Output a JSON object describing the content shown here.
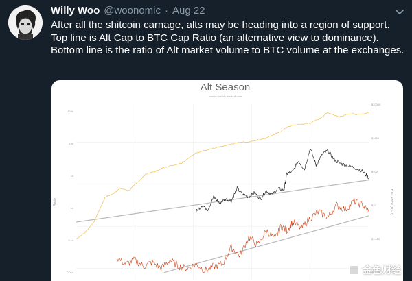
{
  "tweet": {
    "author_name": "Willy Woo",
    "author_handle": "@woonomic",
    "separator": "·",
    "date": "Aug 22",
    "text": "After all the shitcoin carnage, alts may be heading into a region of support. Top line is Alt Cap to BTC Cap Ratio (an alternative view to dominance). Bottom line is the ratio of Alt market volume to BTC volume at the exchanges."
  },
  "icons": {
    "avatar": "avatar-portrait",
    "menu": "chevron-down-icon",
    "watermark": "watermark-logo-icon"
  },
  "watermark": {
    "text": "金色财经"
  },
  "chart_data": {
    "type": "line",
    "title": "Alt Season",
    "subtitle": "source: charts.woobull.com",
    "ylabel_left": "Ratio",
    "ylabel_right": "BTC Price (USD)",
    "y_left_ticks": [
      "100x",
      "10x",
      "1x",
      "1x",
      "0.1x",
      "0.01x"
    ],
    "y_right_ticks": [
      "$10000",
      "$1000",
      "$100",
      "$10",
      "$1.000",
      "$0.100"
    ],
    "grid": true,
    "log_scale": true,
    "colors": {
      "btc_price": "#f0c050",
      "alt_cap_ratio": "#2a2a2a",
      "alt_volume_ratio": "#d04010",
      "support": "#b8b8b8"
    },
    "series": [
      {
        "key": "btc_price",
        "x": [
          0,
          0.03,
          0.06,
          0.08,
          0.1,
          0.12,
          0.15,
          0.18,
          0.21,
          0.24,
          0.27,
          0.3,
          0.33,
          0.36,
          0.38,
          0.41,
          0.44,
          0.47,
          0.5,
          0.53,
          0.56,
          0.59,
          0.62,
          0.65,
          0.68,
          0.7,
          0.72,
          0.74,
          0.77,
          0.8,
          0.83,
          0.86,
          0.9,
          0.93,
          0.97,
          1.0
        ],
        "y": [
          -2.6,
          -2.3,
          -1.8,
          -1.2,
          -0.6,
          -0.5,
          -0.2,
          -0.3,
          0.1,
          0.5,
          0.6,
          0.8,
          0.9,
          1.0,
          1.2,
          1.5,
          1.6,
          1.7,
          1.8,
          1.9,
          2.0,
          2.0,
          2.1,
          2.2,
          2.4,
          2.5,
          2.7,
          2.8,
          2.85,
          2.9,
          3.1,
          3.4,
          3.2,
          3.35,
          3.3,
          3.4
        ]
      },
      {
        "key": "alt_cap_ratio",
        "x": [
          0.41,
          0.43,
          0.45,
          0.47,
          0.49,
          0.51,
          0.53,
          0.55,
          0.57,
          0.59,
          0.61,
          0.63,
          0.65,
          0.67,
          0.69,
          0.71,
          0.72,
          0.74,
          0.76,
          0.78,
          0.8,
          0.82,
          0.84,
          0.86,
          0.88,
          0.9,
          0.92,
          0.95,
          0.98,
          1.0
        ],
        "y": [
          -1.3,
          -1.0,
          -1.2,
          -0.6,
          -0.9,
          -0.7,
          -0.8,
          -0.2,
          -0.5,
          -0.6,
          -0.4,
          -0.7,
          -0.3,
          -0.5,
          -0.2,
          -0.3,
          0.5,
          0.6,
          1.1,
          0.7,
          1.7,
          0.9,
          1.4,
          1.6,
          1.2,
          1.0,
          0.9,
          0.8,
          0.6,
          0.3
        ]
      },
      {
        "key": "alt_volume_ratio",
        "x": [
          0.14,
          0.17,
          0.2,
          0.23,
          0.26,
          0.29,
          0.32,
          0.35,
          0.38,
          0.41,
          0.44,
          0.47,
          0.5,
          0.53,
          0.56,
          0.59,
          0.62,
          0.65,
          0.68,
          0.7,
          0.72,
          0.74,
          0.77,
          0.8,
          0.83,
          0.86,
          0.89,
          0.92,
          0.95,
          0.98,
          1.0
        ],
        "y": [
          -3.5,
          -3.8,
          -3.6,
          -3.9,
          -3.7,
          -4.0,
          -3.6,
          -3.9,
          -4.0,
          -3.8,
          -4.1,
          -3.9,
          -3.8,
          -3.0,
          -3.4,
          -2.5,
          -2.9,
          -2.2,
          -2.6,
          -2.0,
          -2.2,
          -1.8,
          -2.1,
          -1.6,
          -1.3,
          -1.6,
          -1.0,
          -1.2,
          -0.8,
          -1.0,
          -1.3
        ]
      }
    ],
    "support_lines": [
      {
        "x": [
          0.0,
          1.0
        ],
        "y": [
          -1.8,
          0.2
        ]
      },
      {
        "x": [
          0.3,
          1.0
        ],
        "y": [
          -4.2,
          -1.5
        ]
      }
    ]
  }
}
